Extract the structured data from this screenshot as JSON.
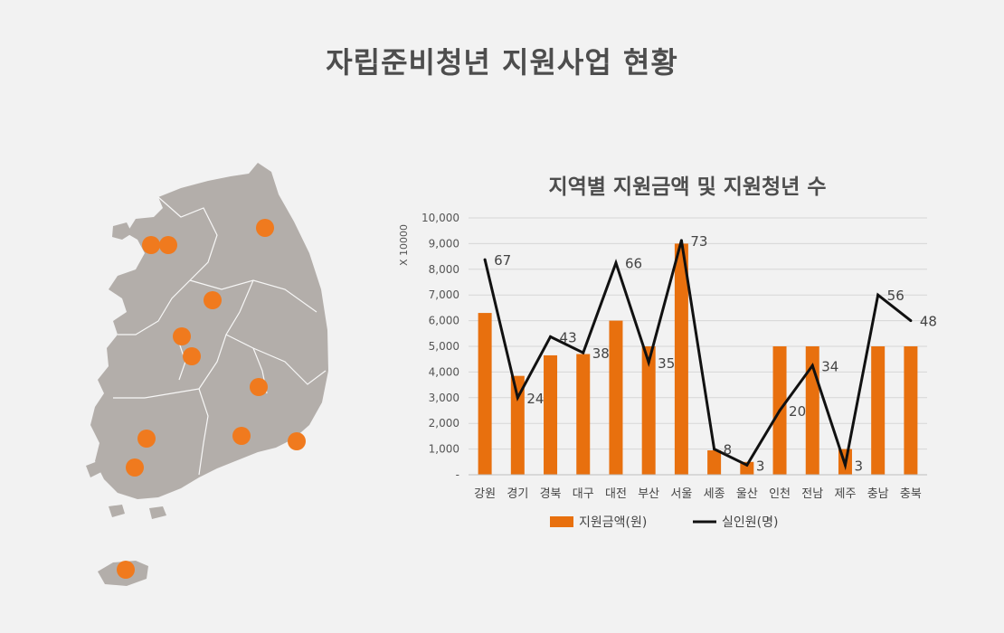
{
  "page": {
    "title": "자립준비청년 지원사업 현황"
  },
  "colors": {
    "background": "#f2f2f2",
    "bar": "#e8700e",
    "line": "#111111",
    "map_land": "#b3aeaa",
    "map_marker": "#f07a1e"
  },
  "map": {
    "marker_count": 12
  },
  "chart_data": {
    "type": "bar",
    "title": "지역별 지원금액 및 지원청년 수",
    "y_unit_label": "X 10000",
    "categories": [
      "강원",
      "경기",
      "경북",
      "대구",
      "대전",
      "부산",
      "서울",
      "세종",
      "울산",
      "인천",
      "전남",
      "제주",
      "충남",
      "충북"
    ],
    "y_ticks": [
      "-",
      "1,000",
      "2,000",
      "3,000",
      "4,000",
      "5,000",
      "6,000",
      "7,000",
      "8,000",
      "9,000",
      "10,000"
    ],
    "ylim": [
      0,
      10000
    ],
    "grid": true,
    "legend_position": "bottom",
    "series": [
      {
        "name": "지원금액(원)",
        "type": "bar",
        "values": [
          6300,
          3850,
          4650,
          4700,
          6000,
          5000,
          9000,
          950,
          500,
          5000,
          5000,
          1000,
          5000,
          5000
        ]
      },
      {
        "name": "실인원(명)",
        "type": "line",
        "values": [
          67,
          24,
          43,
          38,
          66,
          35,
          73,
          8,
          3,
          20,
          34,
          3,
          56,
          48
        ],
        "labels": [
          "67",
          "24",
          "43",
          "38",
          "66",
          "35",
          "73",
          "8",
          "3",
          "20",
          "34",
          "3",
          "56",
          "48"
        ]
      }
    ]
  }
}
